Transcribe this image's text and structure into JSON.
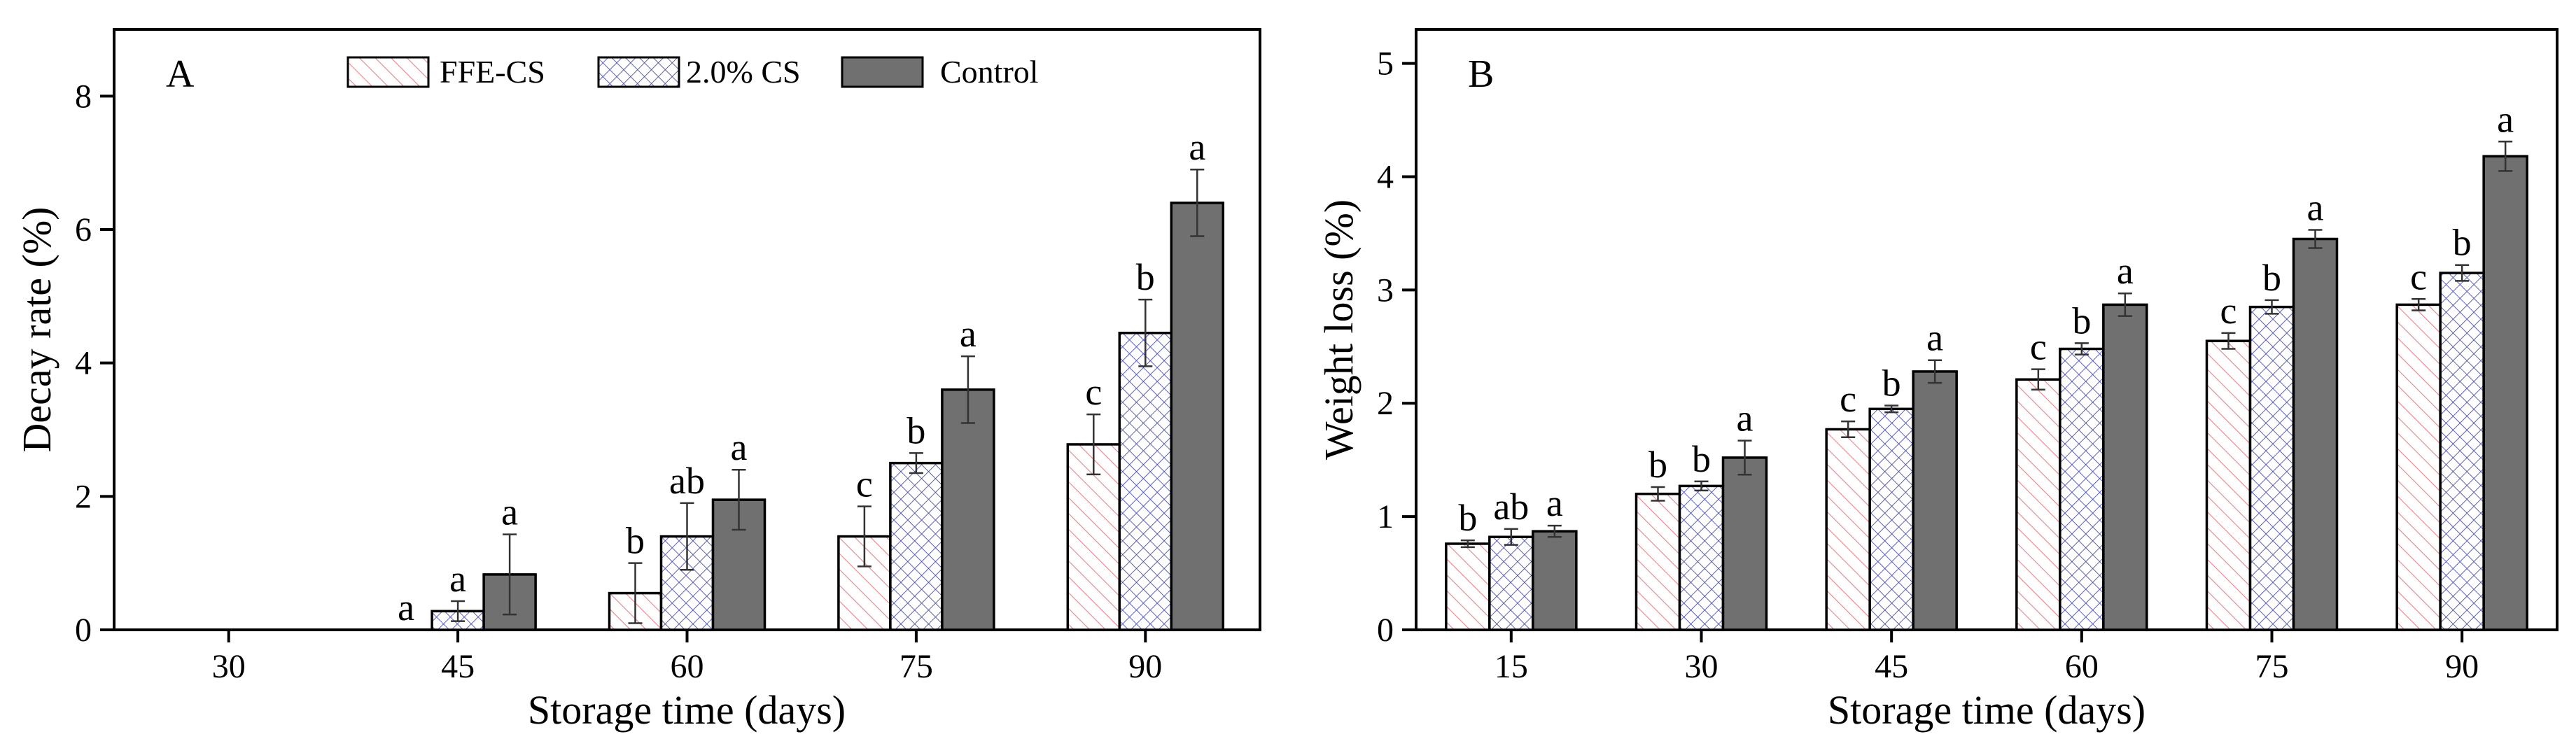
{
  "colors": {
    "ffe_hatch": "#e8848a",
    "cs_hatch": "#4a4fb0",
    "control_fill": "#707070",
    "axis": "#000000",
    "error_bar": "#333333"
  },
  "legend": {
    "entries": [
      "FFE-CS",
      "2.0% CS",
      "Control"
    ]
  },
  "chart_data": [
    {
      "type": "bar",
      "panel_label": "A",
      "title": "",
      "xlabel": "Storage time (days)",
      "ylabel": "Decay rate (%)",
      "categories": [
        "30",
        "45",
        "60",
        "75",
        "90"
      ],
      "ylim": [
        0,
        9
      ],
      "yticks": [
        0,
        2,
        4,
        6,
        8
      ],
      "legend_placement": "top",
      "series": [
        {
          "name": "FFE-CS",
          "values": [
            null,
            null,
            0.55,
            1.4,
            2.78
          ],
          "errors": [
            null,
            null,
            0.45,
            0.45,
            0.45
          ],
          "labels": [
            "",
            "a",
            "b",
            "c",
            "c"
          ]
        },
        {
          "name": "2.0% CS",
          "values": [
            null,
            0.28,
            1.4,
            2.5,
            4.45
          ],
          "errors": [
            null,
            0.15,
            0.5,
            0.15,
            0.5
          ],
          "labels": [
            "",
            "a",
            "ab",
            "b",
            "b"
          ]
        },
        {
          "name": "Control",
          "values": [
            null,
            0.83,
            1.95,
            3.6,
            6.4
          ],
          "errors": [
            null,
            0.6,
            0.45,
            0.5,
            0.5
          ],
          "labels": [
            "",
            "a",
            "a",
            "a",
            "a"
          ]
        }
      ]
    },
    {
      "type": "bar",
      "panel_label": "B",
      "title": "",
      "xlabel": "Storage time (days)",
      "ylabel": "Weight loss (%)",
      "categories": [
        "15",
        "30",
        "45",
        "60",
        "75",
        "90"
      ],
      "ylim": [
        0,
        5.3
      ],
      "yticks": [
        0,
        1,
        2,
        3,
        4,
        5
      ],
      "legend_placement": "none",
      "series": [
        {
          "name": "FFE-CS",
          "values": [
            0.76,
            1.2,
            1.77,
            2.21,
            2.55,
            2.87
          ],
          "errors": [
            0.03,
            0.06,
            0.07,
            0.09,
            0.07,
            0.05
          ],
          "labels": [
            "b",
            "b",
            "c",
            "c",
            "c",
            "c"
          ]
        },
        {
          "name": "2.0% CS",
          "values": [
            0.82,
            1.27,
            1.95,
            2.48,
            2.85,
            3.15
          ],
          "errors": [
            0.07,
            0.04,
            0.03,
            0.05,
            0.06,
            0.07
          ],
          "labels": [
            "ab",
            "b",
            "b",
            "b",
            "b",
            "b"
          ]
        },
        {
          "name": "Control",
          "values": [
            0.87,
            1.52,
            2.28,
            2.87,
            3.45,
            4.18
          ],
          "errors": [
            0.05,
            0.15,
            0.1,
            0.1,
            0.08,
            0.13
          ],
          "labels": [
            "a",
            "a",
            "a",
            "a",
            "a",
            "a"
          ]
        }
      ]
    }
  ]
}
